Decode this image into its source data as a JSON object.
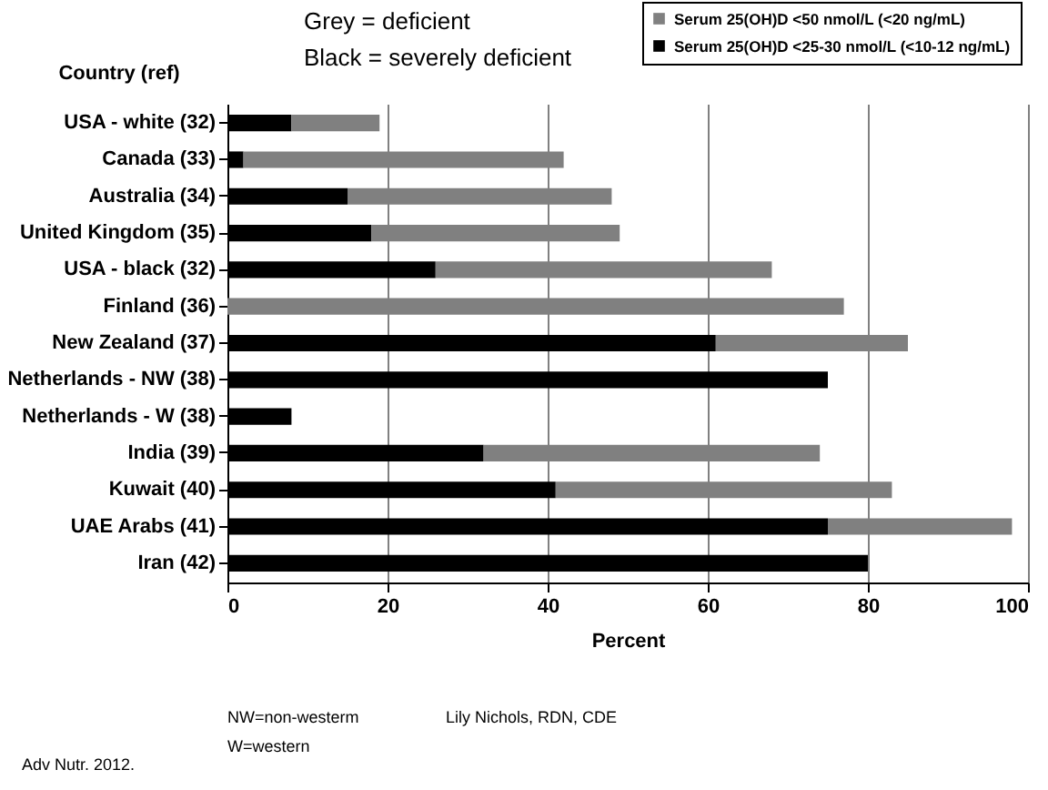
{
  "chart_data": {
    "type": "bar",
    "orientation": "horizontal",
    "stacked": true,
    "categories": [
      "USA - white (32)",
      "Canada (33)",
      "Australia (34)",
      "United Kingdom (35)",
      "USA - black (32)",
      "Finland (36)",
      "New Zealand (37)",
      "Netherlands - NW (38)",
      "Netherlands - W (38)",
      "India (39)",
      "Kuwait (40)",
      "UAE Arabs (41)",
      "Iran (42)"
    ],
    "series": [
      {
        "name": "Serum 25(OH)D <25-30 nmol/L (<10-12 ng/mL)",
        "color": "#000000",
        "values": [
          8,
          2,
          15,
          18,
          26,
          null,
          61,
          75,
          8,
          32,
          41,
          75,
          80
        ]
      },
      {
        "name": "Serum 25(OH)D <50 nmol/L (<20 ng/mL)",
        "color": "#808080",
        "values": [
          11,
          40,
          33,
          31,
          42,
          77,
          24,
          null,
          null,
          42,
          42,
          23,
          null
        ]
      }
    ],
    "xlabel": "Percent",
    "ylabel": "Country (ref)",
    "xlim": [
      0,
      100
    ],
    "xticks": [
      0,
      20,
      40,
      60,
      80,
      100
    ],
    "grid": "x",
    "legend": "top right",
    "annotations": [
      "Grey = deficient",
      "Black = severely deficient",
      "NW=non-westerm",
      "W=western",
      "Lily Nichols, RDN, CDE",
      "Adv Nutr. 2012."
    ]
  }
}
